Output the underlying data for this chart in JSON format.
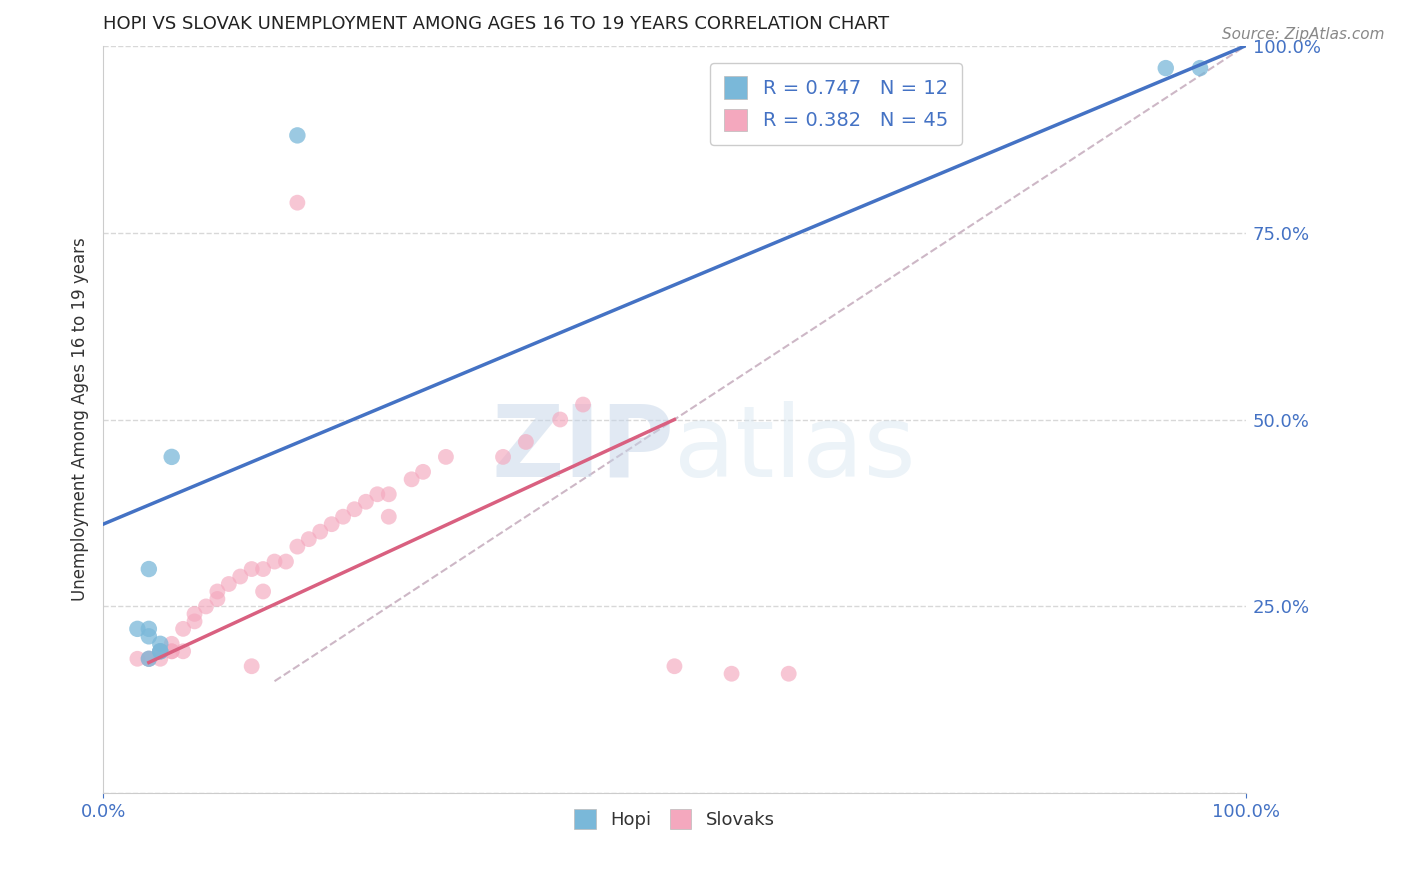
{
  "title": "HOPI VS SLOVAK UNEMPLOYMENT AMONG AGES 16 TO 19 YEARS CORRELATION CHART",
  "source": "Source: ZipAtlas.com",
  "ylabel": "Unemployment Among Ages 16 to 19 years",
  "xlim": [
    0,
    1
  ],
  "ylim": [
    0,
    1
  ],
  "xticks": [
    0,
    1.0
  ],
  "xticklabels": [
    "0.0%",
    "100.0%"
  ],
  "yticks": [
    0,
    0.25,
    0.5,
    0.75,
    1.0
  ],
  "yticklabels_right": [
    "",
    "25.0%",
    "50.0%",
    "75.0%",
    "100.0%"
  ],
  "hopi_color": "#7ab8d9",
  "slovak_color": "#f4a8be",
  "hopi_line_color": "#4472c4",
  "slovak_line_color": "#d96080",
  "ref_line_color": "#c8b0c0",
  "background_color": "#ffffff",
  "grid_color": "#d8d8d8",
  "hopi_x": [
    0.17,
    0.06,
    0.04,
    0.03,
    0.04,
    0.04,
    0.05,
    0.05,
    0.05,
    0.04,
    0.93,
    0.96
  ],
  "hopi_y": [
    0.88,
    0.45,
    0.3,
    0.22,
    0.22,
    0.21,
    0.2,
    0.19,
    0.19,
    0.18,
    0.97,
    0.97
  ],
  "slovak_x": [
    0.17,
    0.03,
    0.05,
    0.07,
    0.04,
    0.04,
    0.05,
    0.05,
    0.06,
    0.06,
    0.06,
    0.07,
    0.08,
    0.08,
    0.09,
    0.1,
    0.1,
    0.11,
    0.12,
    0.13,
    0.14,
    0.14,
    0.15,
    0.16,
    0.17,
    0.18,
    0.19,
    0.2,
    0.21,
    0.22,
    0.23,
    0.24,
    0.25,
    0.25,
    0.27,
    0.28,
    0.3,
    0.35,
    0.37,
    0.4,
    0.42,
    0.5,
    0.55,
    0.6,
    0.13
  ],
  "slovak_y": [
    0.79,
    0.18,
    0.18,
    0.19,
    0.18,
    0.18,
    0.19,
    0.19,
    0.19,
    0.19,
    0.2,
    0.22,
    0.23,
    0.24,
    0.25,
    0.26,
    0.27,
    0.28,
    0.29,
    0.3,
    0.27,
    0.3,
    0.31,
    0.31,
    0.33,
    0.34,
    0.35,
    0.36,
    0.37,
    0.38,
    0.39,
    0.4,
    0.4,
    0.37,
    0.42,
    0.43,
    0.45,
    0.45,
    0.47,
    0.5,
    0.52,
    0.17,
    0.16,
    0.16,
    0.17
  ],
  "hopi_line_x": [
    0,
    1.0
  ],
  "hopi_line_y": [
    0.36,
    1.0
  ],
  "slovak_line_x": [
    0.04,
    0.5
  ],
  "slovak_line_y": [
    0.175,
    0.5
  ],
  "ref_line_x": [
    0.15,
    1.0
  ],
  "ref_line_y": [
    0.15,
    1.0
  ],
  "legend_entries": [
    {
      "label": "R = 0.747   N = 12",
      "color": "#7ab8d9"
    },
    {
      "label": "R = 0.382   N = 45",
      "color": "#f4a8be"
    }
  ],
  "bottom_legend": [
    {
      "label": "Hopi",
      "color": "#7ab8d9"
    },
    {
      "label": "Slovaks",
      "color": "#f4a8be"
    }
  ]
}
